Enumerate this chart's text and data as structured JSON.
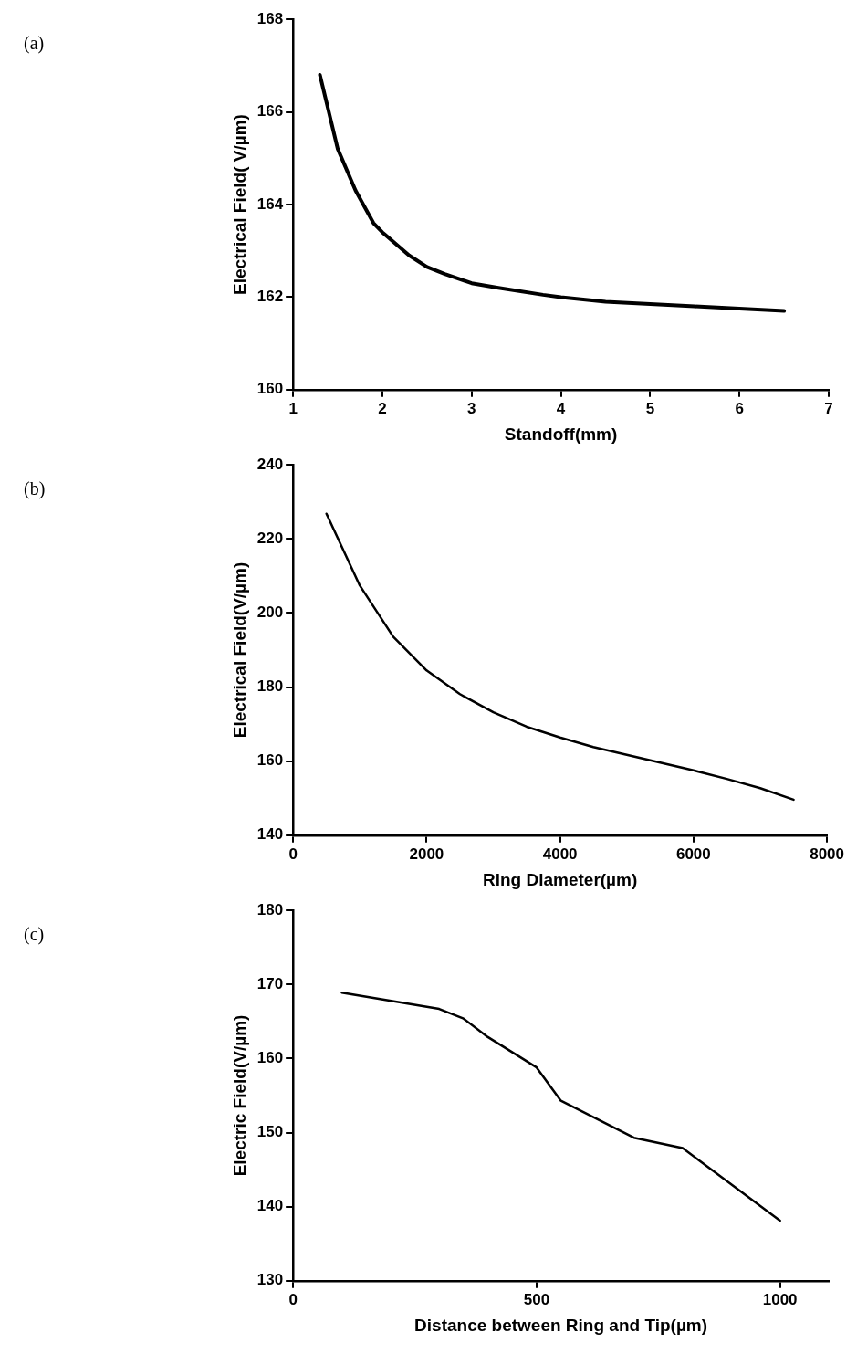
{
  "chart_data": [
    {
      "type": "line",
      "annotations": [
        "(a)"
      ],
      "xlabel": "Standoff(mm)",
      "ylabel": "Electrical Field( V/µm)",
      "x": [
        1.3,
        1.5,
        1.7,
        1.9,
        2.0,
        2.3,
        2.5,
        2.7,
        3.0,
        3.3,
        3.8,
        4.0,
        4.5,
        5.0,
        5.5,
        6.0,
        6.5
      ],
      "series": [
        {
          "color": "#000000",
          "values": [
            166.8,
            165.2,
            164.3,
            163.6,
            163.4,
            162.9,
            162.65,
            162.5,
            162.3,
            162.2,
            162.05,
            162.0,
            161.9,
            161.85,
            161.8,
            161.75,
            161.7
          ]
        }
      ],
      "xlim": [
        1,
        7
      ],
      "xticks": [
        1,
        2,
        3,
        4,
        5,
        6,
        7
      ],
      "ylim": [
        160,
        168
      ],
      "yticks": [
        160,
        162,
        164,
        166,
        168
      ],
      "grid": false,
      "legend": false,
      "marker": "none",
      "line_style": "solid"
    },
    {
      "type": "line",
      "annotations": [
        "(b)"
      ],
      "xlabel": "Ring Diameter(µm)",
      "ylabel": "Electrical Field(V/µm)",
      "x": [
        500,
        1000,
        1500,
        2000,
        2500,
        3000,
        3500,
        4000,
        4500,
        5000,
        5500,
        6000,
        6500,
        7000,
        7500
      ],
      "series": [
        {
          "color": "#000000",
          "values": [
            226.8,
            207.4,
            193.6,
            184.5,
            178.1,
            173.2,
            169.3,
            166.4,
            163.8,
            161.7,
            159.6,
            157.5,
            155.2,
            152.7,
            149.6
          ]
        }
      ],
      "xlim": [
        0,
        8000
      ],
      "xticks": [
        0,
        2000,
        4000,
        6000,
        8000
      ],
      "ylim": [
        140,
        240
      ],
      "yticks": [
        140,
        160,
        180,
        200,
        220,
        240
      ],
      "grid": false,
      "legend": false,
      "marker": "none",
      "line_style": "solid"
    },
    {
      "type": "line",
      "annotations": [
        "(c)"
      ],
      "xlabel": "Distance between Ring and Tip(µm)",
      "ylabel": "Electric Field(V/µm)",
      "x": [
        100,
        300,
        350,
        400,
        500,
        550,
        700,
        800,
        1000
      ],
      "series": [
        {
          "color": "#000000",
          "values": [
            168.9,
            166.7,
            165.4,
            162.9,
            158.8,
            154.3,
            149.3,
            147.9,
            138.1
          ]
        }
      ],
      "xlim": [
        0,
        1100
      ],
      "xticks": [
        0,
        500,
        1000
      ],
      "ylim": [
        130,
        180
      ],
      "yticks": [
        130,
        140,
        150,
        160,
        170,
        180
      ],
      "grid": false,
      "legend": false,
      "marker": "none",
      "line_style": "solid"
    }
  ]
}
